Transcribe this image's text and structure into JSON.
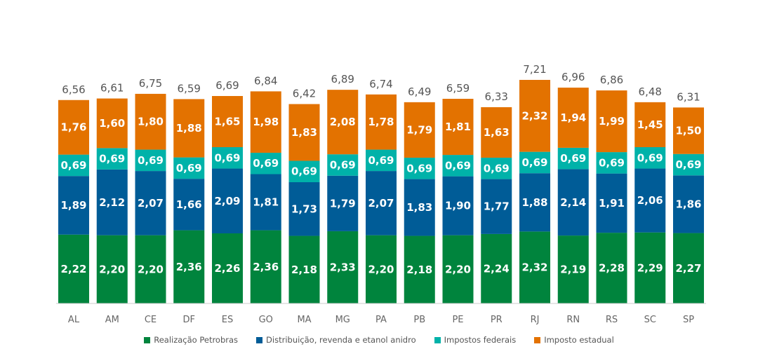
{
  "chart_data": {
    "type": "bar",
    "stacked": true,
    "categories": [
      "AL",
      "AM",
      "CE",
      "DF",
      "ES",
      "GO",
      "MA",
      "MG",
      "PA",
      "PB",
      "PE",
      "PR",
      "RJ",
      "RN",
      "RS",
      "SC",
      "SP"
    ],
    "totals": [
      "6,56",
      "6,61",
      "6,75",
      "6,59",
      "6,69",
      "6,84",
      "6,42",
      "6,89",
      "6,74",
      "6,49",
      "6,59",
      "6,33",
      "7,21",
      "6,96",
      "6,86",
      "6,48",
      "6,31"
    ],
    "series": [
      {
        "name": "Realização Petrobras",
        "color": "#00843D",
        "values": [
          2.22,
          2.2,
          2.2,
          2.36,
          2.26,
          2.36,
          2.18,
          2.33,
          2.2,
          2.18,
          2.2,
          2.24,
          2.32,
          2.19,
          2.28,
          2.29,
          2.27
        ],
        "labels": [
          "2,22",
          "2,20",
          "2,20",
          "2,36",
          "2,26",
          "2,36",
          "2,18",
          "2,33",
          "2,20",
          "2,18",
          "2,20",
          "2,24",
          "2,32",
          "2,19",
          "2,28",
          "2,29",
          "2,27"
        ]
      },
      {
        "name": "Distribuição, revenda e etanol anidro",
        "color": "#005C97",
        "values": [
          1.89,
          2.12,
          2.07,
          1.66,
          2.09,
          1.81,
          1.73,
          1.79,
          2.07,
          1.83,
          1.9,
          1.77,
          1.88,
          2.14,
          1.91,
          2.06,
          1.86
        ],
        "labels": [
          "1,89",
          "2,12",
          "2,07",
          "1,66",
          "2,09",
          "1,81",
          "1,73",
          "1,79",
          "2,07",
          "1,83",
          "1,90",
          "1,77",
          "1,88",
          "2,14",
          "1,91",
          "2,06",
          "1,86"
        ]
      },
      {
        "name": "Impostos federais",
        "color": "#00B2A9",
        "values": [
          0.69,
          0.69,
          0.69,
          0.69,
          0.69,
          0.69,
          0.69,
          0.69,
          0.69,
          0.69,
          0.69,
          0.69,
          0.69,
          0.69,
          0.69,
          0.69,
          0.69
        ],
        "labels": [
          "0,69",
          "0,69",
          "0,69",
          "0,69",
          "0,69",
          "0,69",
          "0,69",
          "0,69",
          "0,69",
          "0,69",
          "0,69",
          "0,69",
          "0,69",
          "0,69",
          "0,69",
          "0,69",
          "0,69"
        ]
      },
      {
        "name": "Imposto estadual",
        "color": "#E37200",
        "values": [
          1.76,
          1.6,
          1.8,
          1.88,
          1.65,
          1.98,
          1.83,
          2.08,
          1.78,
          1.79,
          1.81,
          1.63,
          2.32,
          1.94,
          1.99,
          1.45,
          1.5
        ],
        "labels": [
          "1,76",
          "1,60",
          "1,80",
          "1,88",
          "1,65",
          "1,98",
          "1,83",
          "2,08",
          "1,78",
          "1,79",
          "1,81",
          "1,63",
          "2,32",
          "1,94",
          "1,99",
          "1,45",
          "1,50"
        ]
      }
    ],
    "ylim": [
      0,
      7.21
    ],
    "grid": false,
    "legend_position": "bottom"
  }
}
